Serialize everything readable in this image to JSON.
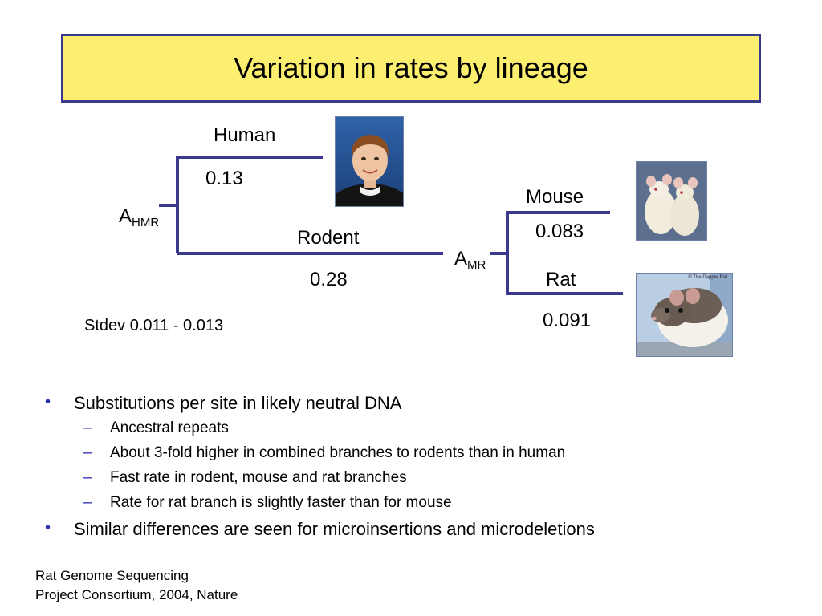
{
  "title": "Variation in rates by lineage",
  "tree": {
    "root_node": {
      "base": "A",
      "sub": "HMR"
    },
    "rodent_node": {
      "base": "A",
      "sub": "MR"
    },
    "branches": [
      {
        "name": "Human",
        "rate": "0.13"
      },
      {
        "name": "Rodent",
        "rate": "0.28"
      },
      {
        "name": "Mouse",
        "rate": "0.083"
      },
      {
        "name": "Rat",
        "rate": "0.091"
      }
    ],
    "stdev": "Stdev 0.011 - 0.013",
    "line_color": "#3a3a8c"
  },
  "photos": {
    "rat_caption": "© The Dapper Rat"
  },
  "bullets": [
    {
      "text": "Substitutions per site in likely neutral DNA",
      "sub": [
        "Ancestral repeats",
        "About 3-fold higher in combined branches to rodents than in human",
        "Fast rate in rodent, mouse and rat branches",
        "Rate for rat branch is slightly faster than for mouse"
      ]
    },
    {
      "text": "Similar differences are seen for microinsertions and microdeletions",
      "sub": []
    }
  ],
  "citation": {
    "line1": "Rat Genome Sequencing",
    "line2": "Project Consortium, 2004, Nature"
  },
  "colors": {
    "title_bg": "#fcee6e",
    "title_border": "#3a3a8c",
    "bullet": "#2d2db5"
  }
}
